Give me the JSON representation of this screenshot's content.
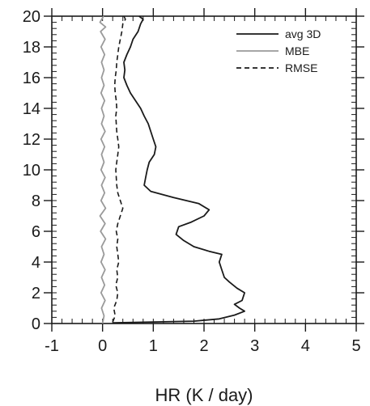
{
  "chart_data": {
    "type": "line",
    "title": "",
    "xlabel": "HR (K / day)",
    "ylabel": "",
    "xlim": [
      -1,
      5
    ],
    "ylim": [
      0,
      20
    ],
    "x_ticks": [
      "-1",
      "0",
      "1",
      "2",
      "3",
      "4",
      "5"
    ],
    "y_ticks": [
      "0",
      "2",
      "4",
      "6",
      "8",
      "10",
      "12",
      "14",
      "16",
      "18",
      "20"
    ],
    "grid": false,
    "legend": {
      "position": "top-right"
    },
    "series": [
      {
        "name": "avg 3D",
        "color": "#1a1a1a",
        "style": "solid",
        "points": [
          [
            0.2,
            0.05
          ],
          [
            1.8,
            0.15
          ],
          [
            2.3,
            0.3
          ],
          [
            2.6,
            0.55
          ],
          [
            2.8,
            0.8
          ],
          [
            2.7,
            1.0
          ],
          [
            2.6,
            1.25
          ],
          [
            2.75,
            1.5
          ],
          [
            2.8,
            2.0
          ],
          [
            2.65,
            2.3
          ],
          [
            2.5,
            2.7
          ],
          [
            2.4,
            3.0
          ],
          [
            2.35,
            3.5
          ],
          [
            2.3,
            4.0
          ],
          [
            2.35,
            4.5
          ],
          [
            2.1,
            4.7
          ],
          [
            1.8,
            5.0
          ],
          [
            1.6,
            5.4
          ],
          [
            1.45,
            5.8
          ],
          [
            1.5,
            6.3
          ],
          [
            1.75,
            6.6
          ],
          [
            2.0,
            7.0
          ],
          [
            2.1,
            7.4
          ],
          [
            1.9,
            7.8
          ],
          [
            1.4,
            8.2
          ],
          [
            0.95,
            8.6
          ],
          [
            0.82,
            9.0
          ],
          [
            0.85,
            9.5
          ],
          [
            0.88,
            10.0
          ],
          [
            0.92,
            10.5
          ],
          [
            1.02,
            11.0
          ],
          [
            1.05,
            11.5
          ],
          [
            1.0,
            12.0
          ],
          [
            0.95,
            12.5
          ],
          [
            0.9,
            13.0
          ],
          [
            0.82,
            13.5
          ],
          [
            0.75,
            14.0
          ],
          [
            0.65,
            14.5
          ],
          [
            0.55,
            15.0
          ],
          [
            0.48,
            15.5
          ],
          [
            0.42,
            16.0
          ],
          [
            0.44,
            16.5
          ],
          [
            0.42,
            17.0
          ],
          [
            0.48,
            17.5
          ],
          [
            0.55,
            18.0
          ],
          [
            0.6,
            18.5
          ],
          [
            0.7,
            19.0
          ],
          [
            0.75,
            19.5
          ],
          [
            0.8,
            19.8
          ],
          [
            0.72,
            20.0
          ]
        ]
      },
      {
        "name": "MBE",
        "color": "#9a9a9a",
        "style": "solid",
        "points": [
          [
            0.0,
            0.0
          ],
          [
            0.03,
            0.5
          ],
          [
            -0.02,
            1.0
          ],
          [
            0.05,
            1.5
          ],
          [
            -0.03,
            2.0
          ],
          [
            0.04,
            2.5
          ],
          [
            -0.02,
            3.0
          ],
          [
            0.05,
            3.5
          ],
          [
            -0.03,
            4.0
          ],
          [
            0.03,
            4.5
          ],
          [
            -0.02,
            5.0
          ],
          [
            0.06,
            5.5
          ],
          [
            -0.04,
            6.0
          ],
          [
            0.05,
            6.5
          ],
          [
            -0.05,
            7.0
          ],
          [
            0.06,
            7.5
          ],
          [
            -0.03,
            8.0
          ],
          [
            0.04,
            8.5
          ],
          [
            -0.02,
            9.0
          ],
          [
            0.05,
            9.5
          ],
          [
            -0.03,
            10.0
          ],
          [
            0.03,
            10.5
          ],
          [
            -0.02,
            11.0
          ],
          [
            0.04,
            11.5
          ],
          [
            -0.03,
            12.0
          ],
          [
            0.05,
            12.5
          ],
          [
            -0.02,
            13.0
          ],
          [
            0.03,
            13.5
          ],
          [
            -0.02,
            14.0
          ],
          [
            0.04,
            14.5
          ],
          [
            -0.03,
            15.0
          ],
          [
            0.03,
            15.5
          ],
          [
            -0.02,
            16.0
          ],
          [
            0.03,
            16.5
          ],
          [
            -0.02,
            17.0
          ],
          [
            0.04,
            17.5
          ],
          [
            -0.03,
            18.0
          ],
          [
            0.05,
            18.5
          ],
          [
            -0.04,
            19.0
          ],
          [
            0.06,
            19.3
          ],
          [
            -0.05,
            19.6
          ],
          [
            0.02,
            20.0
          ]
        ]
      },
      {
        "name": "RMSE",
        "color": "#1a1a1a",
        "style": "dashed",
        "points": [
          [
            0.2,
            0.1
          ],
          [
            0.25,
            0.5
          ],
          [
            0.22,
            1.0
          ],
          [
            0.28,
            1.5
          ],
          [
            0.3,
            2.0
          ],
          [
            0.26,
            2.5
          ],
          [
            0.3,
            3.0
          ],
          [
            0.28,
            3.5
          ],
          [
            0.32,
            4.0
          ],
          [
            0.3,
            4.5
          ],
          [
            0.28,
            5.0
          ],
          [
            0.3,
            5.5
          ],
          [
            0.27,
            6.0
          ],
          [
            0.3,
            6.5
          ],
          [
            0.35,
            7.0
          ],
          [
            0.4,
            7.5
          ],
          [
            0.35,
            8.0
          ],
          [
            0.3,
            8.5
          ],
          [
            0.28,
            9.0
          ],
          [
            0.27,
            9.5
          ],
          [
            0.26,
            10.0
          ],
          [
            0.28,
            10.5
          ],
          [
            0.3,
            11.0
          ],
          [
            0.32,
            11.5
          ],
          [
            0.3,
            12.0
          ],
          [
            0.28,
            12.5
          ],
          [
            0.27,
            13.0
          ],
          [
            0.26,
            13.5
          ],
          [
            0.28,
            14.0
          ],
          [
            0.27,
            14.5
          ],
          [
            0.25,
            15.0
          ],
          [
            0.24,
            15.5
          ],
          [
            0.25,
            16.0
          ],
          [
            0.27,
            16.5
          ],
          [
            0.28,
            17.0
          ],
          [
            0.3,
            17.5
          ],
          [
            0.32,
            18.0
          ],
          [
            0.35,
            18.5
          ],
          [
            0.38,
            19.0
          ],
          [
            0.4,
            19.5
          ],
          [
            0.45,
            19.8
          ],
          [
            0.42,
            20.0
          ]
        ]
      }
    ]
  }
}
